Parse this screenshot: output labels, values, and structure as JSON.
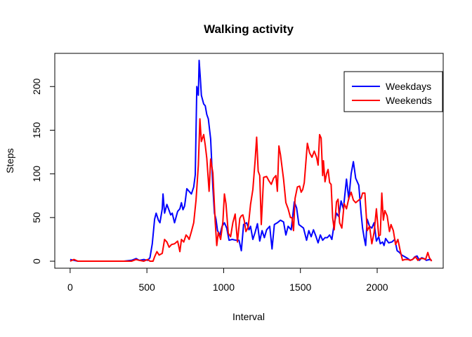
{
  "chart_data": {
    "type": "line",
    "title": "Walking activity",
    "xlabel": "Interval",
    "ylabel": "Steps",
    "xlim": [
      -100,
      2430
    ],
    "ylim": [
      -8,
      238
    ],
    "xticks": [
      0,
      500,
      1000,
      1500,
      2000
    ],
    "yticks": [
      0,
      50,
      100,
      150,
      200
    ],
    "legend_position": "top-right",
    "grid": false,
    "series": [
      {
        "name": "Weekdays",
        "color": "#0000ff",
        "points": [
          [
            0,
            2
          ],
          [
            25,
            1
          ],
          [
            50,
            0
          ],
          [
            100,
            0
          ],
          [
            200,
            0
          ],
          [
            300,
            0
          ],
          [
            350,
            0
          ],
          [
            400,
            1
          ],
          [
            430,
            3
          ],
          [
            450,
            1
          ],
          [
            480,
            2
          ],
          [
            505,
            1
          ],
          [
            520,
            4
          ],
          [
            535,
            20
          ],
          [
            550,
            48
          ],
          [
            560,
            55
          ],
          [
            575,
            47
          ],
          [
            585,
            44
          ],
          [
            600,
            60
          ],
          [
            605,
            77
          ],
          [
            615,
            55
          ],
          [
            630,
            65
          ],
          [
            645,
            58
          ],
          [
            655,
            53
          ],
          [
            665,
            55
          ],
          [
            680,
            44
          ],
          [
            700,
            57
          ],
          [
            715,
            60
          ],
          [
            725,
            67
          ],
          [
            735,
            59
          ],
          [
            745,
            63
          ],
          [
            750,
            69
          ],
          [
            760,
            83
          ],
          [
            790,
            77
          ],
          [
            805,
            85
          ],
          [
            815,
            99
          ],
          [
            825,
            200
          ],
          [
            835,
            190
          ],
          [
            840,
            230
          ],
          [
            848,
            210
          ],
          [
            855,
            190
          ],
          [
            870,
            180
          ],
          [
            880,
            178
          ],
          [
            890,
            168
          ],
          [
            900,
            163
          ],
          [
            915,
            140
          ],
          [
            930,
            84
          ],
          [
            940,
            55
          ],
          [
            950,
            48
          ],
          [
            960,
            35
          ],
          [
            975,
            30
          ],
          [
            990,
            40
          ],
          [
            1005,
            44
          ],
          [
            1020,
            38
          ],
          [
            1035,
            24
          ],
          [
            1055,
            25
          ],
          [
            1080,
            24
          ],
          [
            1100,
            24
          ],
          [
            1115,
            12
          ],
          [
            1130,
            42
          ],
          [
            1150,
            44
          ],
          [
            1165,
            36
          ],
          [
            1175,
            40
          ],
          [
            1190,
            25
          ],
          [
            1205,
            33
          ],
          [
            1220,
            43
          ],
          [
            1235,
            23
          ],
          [
            1250,
            35
          ],
          [
            1265,
            27
          ],
          [
            1280,
            36
          ],
          [
            1300,
            40
          ],
          [
            1315,
            14
          ],
          [
            1330,
            42
          ],
          [
            1350,
            44
          ],
          [
            1370,
            47
          ],
          [
            1390,
            45
          ],
          [
            1405,
            30
          ],
          [
            1420,
            40
          ],
          [
            1440,
            36
          ],
          [
            1460,
            68
          ],
          [
            1475,
            61
          ],
          [
            1490,
            42
          ],
          [
            1505,
            40
          ],
          [
            1520,
            38
          ],
          [
            1540,
            24
          ],
          [
            1555,
            35
          ],
          [
            1570,
            28
          ],
          [
            1585,
            36
          ],
          [
            1600,
            29
          ],
          [
            1615,
            21
          ],
          [
            1630,
            30
          ],
          [
            1645,
            24
          ],
          [
            1660,
            27
          ],
          [
            1675,
            27
          ],
          [
            1690,
            30
          ],
          [
            1705,
            25
          ],
          [
            1720,
            43
          ],
          [
            1735,
            55
          ],
          [
            1750,
            51
          ],
          [
            1765,
            69
          ],
          [
            1780,
            60
          ],
          [
            1800,
            94
          ],
          [
            1815,
            71
          ],
          [
            1830,
            100
          ],
          [
            1845,
            114
          ],
          [
            1860,
            95
          ],
          [
            1880,
            87
          ],
          [
            1895,
            55
          ],
          [
            1905,
            38
          ],
          [
            1915,
            27
          ],
          [
            1925,
            18
          ],
          [
            1935,
            48
          ],
          [
            1950,
            40
          ],
          [
            1965,
            38
          ],
          [
            1980,
            44
          ],
          [
            1995,
            23
          ],
          [
            2010,
            28
          ],
          [
            2020,
            20
          ],
          [
            2035,
            22
          ],
          [
            2045,
            18
          ],
          [
            2055,
            26
          ],
          [
            2075,
            21
          ],
          [
            2095,
            22
          ],
          [
            2115,
            25
          ],
          [
            2130,
            12
          ],
          [
            2145,
            10
          ],
          [
            2160,
            7
          ],
          [
            2180,
            5
          ],
          [
            2200,
            3
          ],
          [
            2215,
            1
          ],
          [
            2230,
            2
          ],
          [
            2245,
            5
          ],
          [
            2260,
            6
          ],
          [
            2275,
            1
          ],
          [
            2290,
            4
          ],
          [
            2305,
            3
          ],
          [
            2320,
            1
          ],
          [
            2340,
            2
          ],
          [
            2355,
            1
          ]
        ]
      },
      {
        "name": "Weekends",
        "color": "#ff0000",
        "points": [
          [
            0,
            0
          ],
          [
            25,
            2
          ],
          [
            50,
            0
          ],
          [
            100,
            0
          ],
          [
            200,
            0
          ],
          [
            300,
            0
          ],
          [
            350,
            0
          ],
          [
            400,
            0
          ],
          [
            430,
            2
          ],
          [
            450,
            1
          ],
          [
            480,
            0
          ],
          [
            505,
            2
          ],
          [
            520,
            0
          ],
          [
            540,
            0
          ],
          [
            550,
            5
          ],
          [
            565,
            11
          ],
          [
            580,
            7
          ],
          [
            600,
            9
          ],
          [
            615,
            25
          ],
          [
            630,
            22
          ],
          [
            645,
            16
          ],
          [
            660,
            19
          ],
          [
            680,
            20
          ],
          [
            700,
            23
          ],
          [
            715,
            11
          ],
          [
            725,
            25
          ],
          [
            740,
            22
          ],
          [
            755,
            30
          ],
          [
            765,
            28
          ],
          [
            775,
            25
          ],
          [
            790,
            34
          ],
          [
            805,
            44
          ],
          [
            820,
            70
          ],
          [
            835,
            110
          ],
          [
            845,
            163
          ],
          [
            855,
            137
          ],
          [
            870,
            145
          ],
          [
            880,
            133
          ],
          [
            890,
            118
          ],
          [
            905,
            80
          ],
          [
            915,
            117
          ],
          [
            930,
            101
          ],
          [
            945,
            45
          ],
          [
            955,
            18
          ],
          [
            965,
            33
          ],
          [
            980,
            25
          ],
          [
            995,
            45
          ],
          [
            1005,
            77
          ],
          [
            1015,
            66
          ],
          [
            1030,
            32
          ],
          [
            1045,
            28
          ],
          [
            1060,
            44
          ],
          [
            1075,
            54
          ],
          [
            1090,
            22
          ],
          [
            1105,
            49
          ],
          [
            1115,
            52
          ],
          [
            1125,
            53
          ],
          [
            1135,
            46
          ],
          [
            1145,
            34
          ],
          [
            1160,
            39
          ],
          [
            1175,
            65
          ],
          [
            1190,
            82
          ],
          [
            1205,
            115
          ],
          [
            1215,
            142
          ],
          [
            1225,
            103
          ],
          [
            1235,
            98
          ],
          [
            1245,
            42
          ],
          [
            1260,
            96
          ],
          [
            1280,
            97
          ],
          [
            1295,
            92
          ],
          [
            1310,
            88
          ],
          [
            1325,
            95
          ],
          [
            1340,
            98
          ],
          [
            1350,
            80
          ],
          [
            1360,
            132
          ],
          [
            1370,
            122
          ],
          [
            1380,
            108
          ],
          [
            1390,
            94
          ],
          [
            1405,
            67
          ],
          [
            1420,
            60
          ],
          [
            1435,
            50
          ],
          [
            1445,
            50
          ],
          [
            1455,
            35
          ],
          [
            1465,
            72
          ],
          [
            1480,
            85
          ],
          [
            1495,
            86
          ],
          [
            1505,
            79
          ],
          [
            1515,
            82
          ],
          [
            1525,
            90
          ],
          [
            1545,
            135
          ],
          [
            1560,
            124
          ],
          [
            1575,
            119
          ],
          [
            1590,
            126
          ],
          [
            1605,
            119
          ],
          [
            1615,
            110
          ],
          [
            1625,
            145
          ],
          [
            1635,
            141
          ],
          [
            1645,
            98
          ],
          [
            1650,
            115
          ],
          [
            1660,
            91
          ],
          [
            1670,
            100
          ],
          [
            1680,
            105
          ],
          [
            1690,
            90
          ],
          [
            1700,
            88
          ],
          [
            1710,
            50
          ],
          [
            1720,
            36
          ],
          [
            1735,
            68
          ],
          [
            1745,
            71
          ],
          [
            1755,
            44
          ],
          [
            1770,
            38
          ],
          [
            1785,
            66
          ],
          [
            1800,
            60
          ],
          [
            1815,
            72
          ],
          [
            1830,
            79
          ],
          [
            1845,
            70
          ],
          [
            1860,
            67
          ],
          [
            1880,
            70
          ],
          [
            1895,
            72
          ],
          [
            1905,
            78
          ],
          [
            1920,
            78
          ],
          [
            1935,
            35
          ],
          [
            1950,
            40
          ],
          [
            1965,
            20
          ],
          [
            1980,
            33
          ],
          [
            1995,
            60
          ],
          [
            2010,
            29
          ],
          [
            2020,
            30
          ],
          [
            2030,
            78
          ],
          [
            2040,
            47
          ],
          [
            2050,
            58
          ],
          [
            2065,
            52
          ],
          [
            2080,
            34
          ],
          [
            2090,
            42
          ],
          [
            2105,
            35
          ],
          [
            2120,
            19
          ],
          [
            2135,
            25
          ],
          [
            2150,
            12
          ],
          [
            2165,
            1
          ],
          [
            2180,
            2
          ],
          [
            2200,
            2
          ],
          [
            2215,
            1
          ],
          [
            2230,
            2
          ],
          [
            2250,
            5
          ],
          [
            2265,
            1
          ],
          [
            2280,
            3
          ],
          [
            2300,
            3
          ],
          [
            2315,
            2
          ],
          [
            2330,
            10
          ],
          [
            2340,
            4
          ],
          [
            2355,
            0
          ]
        ]
      }
    ]
  }
}
